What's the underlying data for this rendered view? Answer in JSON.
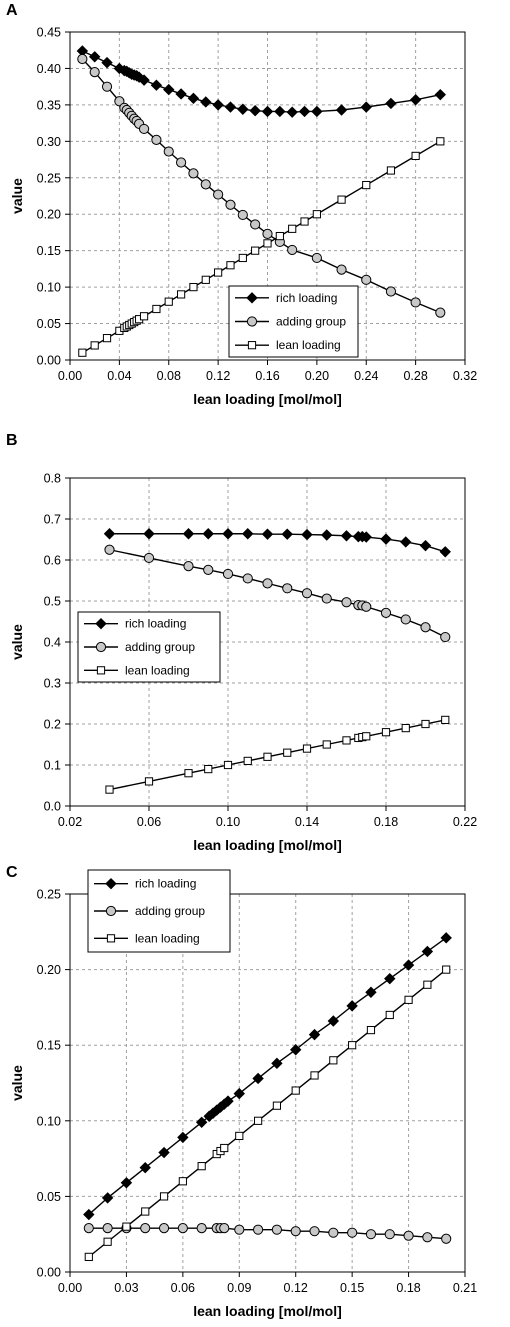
{
  "figure": {
    "panels": [
      "A",
      "B",
      "C"
    ]
  },
  "styles": {
    "rich": {
      "marker": "diamond",
      "fill": "#000000",
      "stroke": "#000000"
    },
    "adding": {
      "marker": "circle",
      "fill": "#c8c8c8",
      "stroke": "#000000"
    },
    "lean": {
      "marker": "square",
      "fill": "#ffffff",
      "stroke": "#000000"
    },
    "grid_color": "#a0a0a0"
  },
  "chart_data": [
    {
      "type": "line",
      "panel": "A",
      "xlabel": "lean loading [mol/mol]",
      "ylabel": "value",
      "xlim": [
        0.0,
        0.32
      ],
      "ylim": [
        0.0,
        0.45
      ],
      "xticks": [
        "0.00",
        "0.04",
        "0.08",
        "0.12",
        "0.16",
        "0.20",
        "0.24",
        "0.28",
        "0.32"
      ],
      "yticks": [
        "0.00",
        "0.05",
        "0.10",
        "0.15",
        "0.20",
        "0.25",
        "0.30",
        "0.35",
        "0.40",
        "0.45"
      ],
      "grid": true,
      "legend_position": "bottom-right",
      "legend": [
        "rich loading",
        "adding group",
        "lean loading"
      ],
      "series": [
        {
          "name": "rich loading",
          "style": "rich",
          "x": [
            0.01,
            0.02,
            0.03,
            0.04,
            0.044,
            0.046,
            0.048,
            0.05,
            0.052,
            0.054,
            0.056,
            0.06,
            0.07,
            0.08,
            0.09,
            0.1,
            0.11,
            0.12,
            0.13,
            0.14,
            0.15,
            0.16,
            0.17,
            0.18,
            0.19,
            0.2,
            0.22,
            0.24,
            0.26,
            0.28,
            0.3
          ],
          "y": [
            0.424,
            0.416,
            0.408,
            0.4,
            0.397,
            0.396,
            0.394,
            0.392,
            0.391,
            0.39,
            0.388,
            0.384,
            0.377,
            0.371,
            0.365,
            0.359,
            0.354,
            0.35,
            0.347,
            0.344,
            0.342,
            0.341,
            0.341,
            0.34,
            0.341,
            0.341,
            0.343,
            0.347,
            0.352,
            0.357,
            0.364
          ]
        },
        {
          "name": "adding group",
          "style": "adding",
          "x": [
            0.01,
            0.02,
            0.03,
            0.04,
            0.044,
            0.046,
            0.048,
            0.05,
            0.052,
            0.054,
            0.056,
            0.06,
            0.07,
            0.08,
            0.09,
            0.1,
            0.11,
            0.12,
            0.13,
            0.14,
            0.15,
            0.16,
            0.17,
            0.18,
            0.2,
            0.22,
            0.24,
            0.26,
            0.28,
            0.3
          ],
          "y": [
            0.413,
            0.395,
            0.375,
            0.355,
            0.346,
            0.343,
            0.339,
            0.335,
            0.331,
            0.328,
            0.324,
            0.317,
            0.302,
            0.286,
            0.271,
            0.256,
            0.241,
            0.227,
            0.213,
            0.199,
            0.186,
            0.173,
            0.162,
            0.151,
            0.14,
            0.124,
            0.11,
            0.094,
            0.079,
            0.065
          ]
        },
        {
          "name": "lean loading",
          "style": "lean",
          "x": [
            0.01,
            0.02,
            0.03,
            0.04,
            0.044,
            0.046,
            0.048,
            0.05,
            0.052,
            0.054,
            0.056,
            0.06,
            0.07,
            0.08,
            0.09,
            0.1,
            0.11,
            0.12,
            0.13,
            0.14,
            0.15,
            0.16,
            0.17,
            0.18,
            0.19,
            0.2,
            0.22,
            0.24,
            0.26,
            0.28,
            0.3
          ],
          "y": [
            0.01,
            0.02,
            0.03,
            0.04,
            0.044,
            0.046,
            0.048,
            0.05,
            0.052,
            0.054,
            0.056,
            0.06,
            0.07,
            0.08,
            0.09,
            0.1,
            0.11,
            0.12,
            0.13,
            0.14,
            0.15,
            0.16,
            0.17,
            0.18,
            0.19,
            0.2,
            0.22,
            0.24,
            0.26,
            0.28,
            0.3
          ]
        }
      ]
    },
    {
      "type": "line",
      "panel": "B",
      "xlabel": "lean loading [mol/mol]",
      "ylabel": "value",
      "xlim": [
        0.02,
        0.22
      ],
      "ylim": [
        0.0,
        0.8
      ],
      "xticks": [
        "0.02",
        "0.06",
        "0.10",
        "0.14",
        "0.18",
        "0.22"
      ],
      "yticks": [
        "0.0",
        "0.1",
        "0.2",
        "0.3",
        "0.4",
        "0.5",
        "0.6",
        "0.7",
        "0.8"
      ],
      "grid": true,
      "legend_position": "middle-left",
      "legend": [
        "rich loading",
        "adding group",
        "lean loading"
      ],
      "series": [
        {
          "name": "rich loading",
          "style": "rich",
          "x": [
            0.04,
            0.06,
            0.08,
            0.09,
            0.1,
            0.11,
            0.12,
            0.13,
            0.14,
            0.15,
            0.16,
            0.166,
            0.168,
            0.17,
            0.18,
            0.19,
            0.2,
            0.21
          ],
          "y": [
            0.664,
            0.664,
            0.664,
            0.664,
            0.664,
            0.664,
            0.663,
            0.663,
            0.662,
            0.661,
            0.659,
            0.657,
            0.657,
            0.656,
            0.651,
            0.644,
            0.635,
            0.62
          ]
        },
        {
          "name": "adding group",
          "style": "adding",
          "x": [
            0.04,
            0.06,
            0.08,
            0.09,
            0.1,
            0.11,
            0.12,
            0.13,
            0.14,
            0.15,
            0.16,
            0.166,
            0.168,
            0.17,
            0.18,
            0.19,
            0.2,
            0.21
          ],
          "y": [
            0.625,
            0.605,
            0.585,
            0.576,
            0.566,
            0.555,
            0.543,
            0.531,
            0.519,
            0.506,
            0.497,
            0.49,
            0.489,
            0.486,
            0.471,
            0.455,
            0.436,
            0.412
          ]
        },
        {
          "name": "lean loading",
          "style": "lean",
          "x": [
            0.04,
            0.06,
            0.08,
            0.09,
            0.1,
            0.11,
            0.12,
            0.13,
            0.14,
            0.15,
            0.16,
            0.166,
            0.168,
            0.17,
            0.18,
            0.19,
            0.2,
            0.21
          ],
          "y": [
            0.04,
            0.06,
            0.08,
            0.09,
            0.1,
            0.11,
            0.12,
            0.13,
            0.14,
            0.15,
            0.16,
            0.166,
            0.168,
            0.17,
            0.18,
            0.19,
            0.2,
            0.21
          ]
        }
      ]
    },
    {
      "type": "line",
      "panel": "C",
      "xlabel": "lean loading [mol/mol]",
      "ylabel": "value",
      "xlim": [
        0.0,
        0.21
      ],
      "ylim": [
        0.0,
        0.25
      ],
      "xticks": [
        "0.00",
        "0.03",
        "0.06",
        "0.09",
        "0.12",
        "0.15",
        "0.18",
        "0.21"
      ],
      "yticks": [
        "0.00",
        "0.05",
        "0.10",
        "0.15",
        "0.20",
        "0.25"
      ],
      "grid": true,
      "legend_position": "top-left",
      "legend": [
        "rich loading",
        "adding group",
        "lean loading"
      ],
      "series": [
        {
          "name": "rich loading",
          "style": "rich",
          "x": [
            0.01,
            0.02,
            0.03,
            0.04,
            0.05,
            0.06,
            0.07,
            0.074,
            0.076,
            0.078,
            0.08,
            0.082,
            0.084,
            0.09,
            0.1,
            0.11,
            0.12,
            0.13,
            0.14,
            0.15,
            0.16,
            0.17,
            0.18,
            0.19,
            0.2
          ],
          "y": [
            0.038,
            0.049,
            0.059,
            0.069,
            0.079,
            0.089,
            0.099,
            0.103,
            0.105,
            0.107,
            0.109,
            0.111,
            0.113,
            0.118,
            0.128,
            0.138,
            0.147,
            0.157,
            0.166,
            0.176,
            0.185,
            0.194,
            0.203,
            0.212,
            0.221
          ]
        },
        {
          "name": "adding group",
          "style": "adding",
          "x": [
            0.01,
            0.02,
            0.03,
            0.04,
            0.05,
            0.06,
            0.07,
            0.078,
            0.08,
            0.082,
            0.09,
            0.1,
            0.11,
            0.12,
            0.13,
            0.14,
            0.15,
            0.16,
            0.17,
            0.18,
            0.19,
            0.2
          ],
          "y": [
            0.029,
            0.029,
            0.029,
            0.029,
            0.029,
            0.029,
            0.029,
            0.029,
            0.029,
            0.029,
            0.028,
            0.028,
            0.028,
            0.027,
            0.027,
            0.026,
            0.026,
            0.025,
            0.025,
            0.024,
            0.023,
            0.022
          ]
        },
        {
          "name": "lean loading",
          "style": "lean",
          "x": [
            0.01,
            0.02,
            0.03,
            0.04,
            0.05,
            0.06,
            0.07,
            0.078,
            0.08,
            0.082,
            0.09,
            0.1,
            0.11,
            0.12,
            0.13,
            0.14,
            0.15,
            0.16,
            0.17,
            0.18,
            0.19,
            0.2
          ],
          "y": [
            0.01,
            0.02,
            0.03,
            0.04,
            0.05,
            0.06,
            0.07,
            0.078,
            0.08,
            0.082,
            0.09,
            0.1,
            0.11,
            0.12,
            0.13,
            0.14,
            0.15,
            0.16,
            0.17,
            0.18,
            0.19,
            0.2
          ]
        }
      ]
    }
  ]
}
